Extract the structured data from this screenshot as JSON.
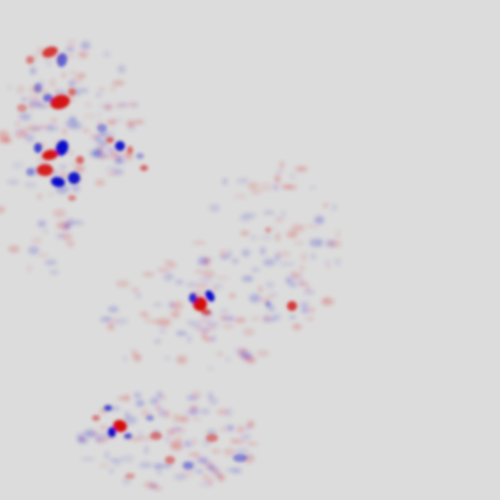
{
  "image": {
    "kind": "diverging attribution heatmap",
    "colors": {
      "background": "#dcdcdc",
      "positive": "#d40000",
      "negative": "#0000c8"
    }
  }
}
